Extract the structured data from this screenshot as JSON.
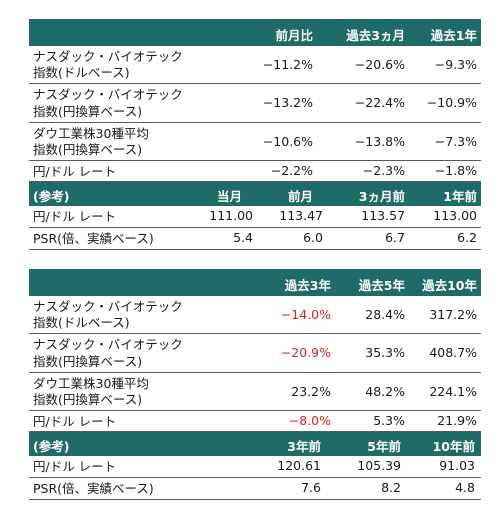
{
  "table1": {
    "headers": [
      "前月比",
      "過去3ヵ月",
      "過去1年"
    ],
    "rows": [
      {
        "label_lines": [
          "ナスダック・バイオテック",
          "指数(ドルベース)"
        ],
        "values": [
          "−11.2%",
          "−20.6%",
          "−9.3%"
        ]
      },
      {
        "label_lines": [
          "ナスダック・バイオテック",
          "指数(円換算ベース)"
        ],
        "values": [
          "−13.2%",
          "−22.4%",
          "−10.9%"
        ]
      },
      {
        "label_lines": [
          "ダウ工業株30種平均",
          "指数(円換算ベース)"
        ],
        "values": [
          "−10.6%",
          "−13.8%",
          "−7.3%"
        ]
      },
      {
        "label_lines": [
          "円/ドル レート"
        ],
        "values": [
          "−2.2%",
          "−2.3%",
          "−1.8%"
        ]
      }
    ],
    "ref_header": {
      "label": "(参考)",
      "cols": [
        "当月",
        "前月",
        "3ヵ月前",
        "1年前"
      ]
    },
    "ref_rows": [
      {
        "label": "円/ドル レート",
        "values": [
          "111.00",
          "113.47",
          "113.57",
          "113.00"
        ]
      },
      {
        "label": "PSR(倍、実績ベース)",
        "values": [
          "5.4",
          "6.0",
          "6.7",
          "6.2"
        ]
      }
    ]
  },
  "table2": {
    "headers": [
      "過去3年",
      "過去5年",
      "過去10年"
    ],
    "rows": [
      {
        "label_lines": [
          "ナスダック・バイオテック",
          "指数(ドルベース)"
        ],
        "values": [
          "−14.0%",
          "28.4%",
          "317.2%"
        ],
        "neg_first": true
      },
      {
        "label_lines": [
          "ナスダック・バイオテック",
          "指数(円換算ベース)"
        ],
        "values": [
          "−20.9%",
          "35.3%",
          "408.7%"
        ],
        "neg_first": true
      },
      {
        "label_lines": [
          "ダウ工業株30種平均",
          "指数(円換算ベース)"
        ],
        "values": [
          "23.2%",
          "48.2%",
          "224.1%"
        ],
        "neg_first": false
      },
      {
        "label_lines": [
          "円/ドル レート"
        ],
        "values": [
          "−8.0%",
          "5.3%",
          "21.9%"
        ],
        "neg_first": true
      }
    ],
    "ref_header": {
      "label": "(参考)",
      "cols": [
        "3年前",
        "5年前",
        "10年前"
      ]
    },
    "ref_rows": [
      {
        "label": "円/ドル レート",
        "values": [
          "120.61",
          "105.39",
          "91.03"
        ]
      },
      {
        "label": "PSR(倍、実績ベース)",
        "values": [
          "7.6",
          "8.2",
          "4.8"
        ]
      }
    ]
  },
  "colors": {
    "header_bg": "#1f6b68",
    "header_text": "#ffffff",
    "negative": "#e02020",
    "text": "#1a1a1a"
  }
}
